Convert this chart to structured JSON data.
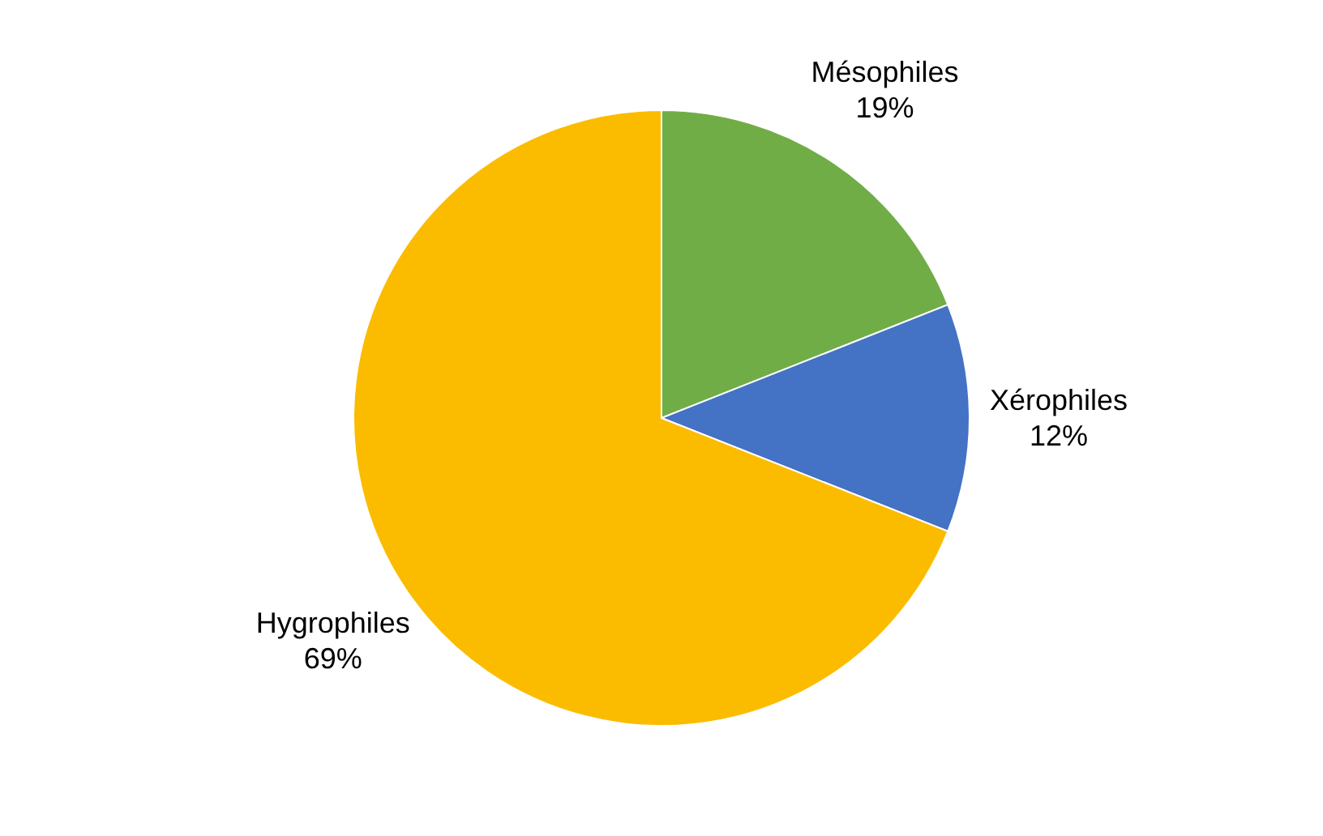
{
  "chart_data": {
    "type": "pie",
    "categories": [
      "Mésophiles",
      "Xérophiles",
      "Hygrophiles"
    ],
    "values": [
      19,
      12,
      69
    ],
    "value_labels": [
      "19%",
      "12%",
      "69%"
    ],
    "colors": [
      "#70ad47",
      "#4472c4",
      "#fbbc00"
    ],
    "legend": false
  }
}
